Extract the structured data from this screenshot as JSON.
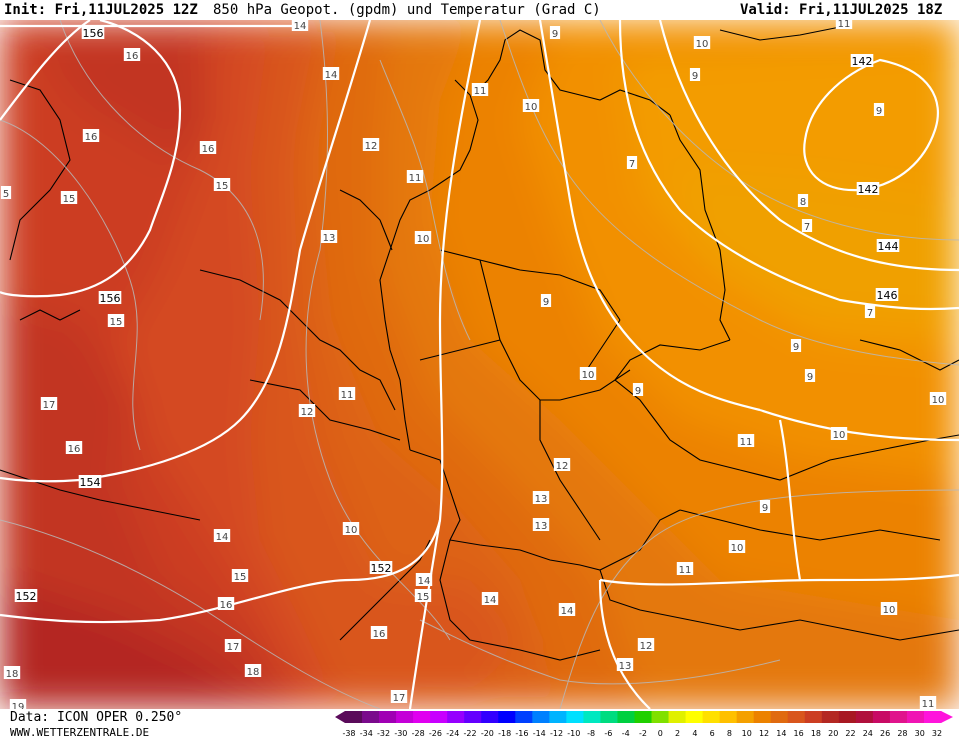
{
  "header": {
    "init": "Init: Fri,11JUL2025 12Z",
    "title": "850 hPa Geopot. (gpdm) und Temperatur (Grad C)",
    "valid": "Valid: Fri,11JUL2025 18Z"
  },
  "footer": {
    "data_source": "Data: ICON OPER 0.250°",
    "website": "WWW.WETTERZENTRALE.DE"
  },
  "colors": {
    "t7": "#f0a000",
    "t8": "#f39c00",
    "t9": "#f29000",
    "t10": "#ec8200",
    "t11": "#e47808",
    "t12": "#e06a10",
    "t13": "#dd6218",
    "t14": "#d9561c",
    "t15": "#d44a20",
    "t16": "#cc3e22",
    "t17": "#c23424",
    "t18": "#b42822"
  },
  "colorbar": {
    "ticks": [
      "-38",
      "-34",
      "-32",
      "-30",
      "-28",
      "-26",
      "-24",
      "-22",
      "-20",
      "-18",
      "-16",
      "-14",
      "-12",
      "-10",
      "-8",
      "-6",
      "-4",
      "-2",
      "0",
      "2",
      "4",
      "6",
      "8",
      "10",
      "12",
      "14",
      "16",
      "18",
      "20",
      "22",
      "24",
      "26",
      "28",
      "30",
      "32"
    ],
    "colors": [
      "#5a0a5a",
      "#7a0a8c",
      "#a000b4",
      "#c400d8",
      "#e000f0",
      "#c800ff",
      "#9600ff",
      "#6400ff",
      "#3200ff",
      "#0000ff",
      "#0040ff",
      "#0080ff",
      "#00b4ff",
      "#00e0ff",
      "#00e8c0",
      "#00dc80",
      "#00d040",
      "#20d000",
      "#80e000",
      "#e0f000",
      "#ffff00",
      "#ffe000",
      "#ffc000",
      "#f4a000",
      "#ec8200",
      "#e06a10",
      "#d9561c",
      "#cc3e22",
      "#b42822",
      "#a81822",
      "#b0103c",
      "#c80a64",
      "#e0148c",
      "#f014b4",
      "#ff14dc"
    ]
  },
  "geopotential_labels": [
    {
      "id": "g156a",
      "text": "156"
    },
    {
      "id": "g156b",
      "text": "156"
    },
    {
      "id": "g154",
      "text": "154"
    },
    {
      "id": "g152a",
      "text": "152"
    },
    {
      "id": "g152b",
      "text": "152"
    },
    {
      "id": "g142a",
      "text": "142"
    },
    {
      "id": "g142b",
      "text": "142"
    },
    {
      "id": "g144",
      "text": "144"
    },
    {
      "id": "g146",
      "text": "146"
    }
  ],
  "temperature_labels": [
    {
      "id": "t1",
      "text": "14"
    },
    {
      "id": "t2",
      "text": "16"
    },
    {
      "id": "t3",
      "text": "14"
    },
    {
      "id": "t4",
      "text": "16"
    },
    {
      "id": "t5",
      "text": "16"
    },
    {
      "id": "t6",
      "text": "15"
    },
    {
      "id": "t7",
      "text": "15"
    },
    {
      "id": "t8",
      "text": "12"
    },
    {
      "id": "t9",
      "text": "11"
    },
    {
      "id": "t10",
      "text": "13"
    },
    {
      "id": "t11",
      "text": "10"
    },
    {
      "id": "t12",
      "text": "11"
    },
    {
      "id": "t13",
      "text": "10"
    },
    {
      "id": "t14",
      "text": "9"
    },
    {
      "id": "t15",
      "text": "10"
    },
    {
      "id": "t16",
      "text": "9"
    },
    {
      "id": "t17",
      "text": "7"
    },
    {
      "id": "t18",
      "text": "9"
    },
    {
      "id": "t19",
      "text": "8"
    },
    {
      "id": "t20",
      "text": "7"
    },
    {
      "id": "t21",
      "text": "7"
    },
    {
      "id": "t22",
      "text": "15"
    },
    {
      "id": "t23",
      "text": "17"
    },
    {
      "id": "t24",
      "text": "16"
    },
    {
      "id": "t25",
      "text": "12"
    },
    {
      "id": "t26",
      "text": "11"
    },
    {
      "id": "t27",
      "text": "9"
    },
    {
      "id": "t28",
      "text": "10"
    },
    {
      "id": "t29",
      "text": "9"
    },
    {
      "id": "t30",
      "text": "9"
    },
    {
      "id": "t31",
      "text": "10"
    },
    {
      "id": "t32",
      "text": "10"
    },
    {
      "id": "t33",
      "text": "9"
    },
    {
      "id": "t34",
      "text": "11"
    },
    {
      "id": "t35",
      "text": "12"
    },
    {
      "id": "t36",
      "text": "13"
    },
    {
      "id": "t37",
      "text": "10"
    },
    {
      "id": "t38",
      "text": "14"
    },
    {
      "id": "t39",
      "text": "13"
    },
    {
      "id": "t40",
      "text": "15"
    },
    {
      "id": "t41",
      "text": "16"
    },
    {
      "id": "t42",
      "text": "14"
    },
    {
      "id": "t43",
      "text": "15"
    },
    {
      "id": "t44",
      "text": "14"
    },
    {
      "id": "t45",
      "text": "14"
    },
    {
      "id": "t46",
      "text": "11"
    },
    {
      "id": "t47",
      "text": "10"
    },
    {
      "id": "t48",
      "text": "16"
    },
    {
      "id": "t49",
      "text": "17"
    },
    {
      "id": "t50",
      "text": "12"
    },
    {
      "id": "t51",
      "text": "13"
    },
    {
      "id": "t52",
      "text": "18"
    },
    {
      "id": "t53",
      "text": "18"
    },
    {
      "id": "t54",
      "text": "19"
    },
    {
      "id": "t55",
      "text": "17"
    },
    {
      "id": "t56",
      "text": "11"
    },
    {
      "id": "t57",
      "text": "10"
    },
    {
      "id": "t58",
      "text": "11"
    },
    {
      "id": "t59",
      "text": "5"
    },
    {
      "id": "t60",
      "text": "9"
    }
  ]
}
